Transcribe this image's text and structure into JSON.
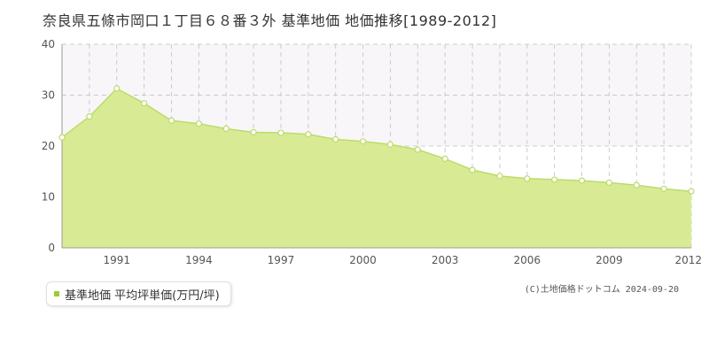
{
  "chart_data": {
    "type": "area",
    "title": "奈良県五條市岡口１丁目６８番３外 基準地価 地価推移[1989-2012]",
    "x": [
      1989,
      1990,
      1991,
      1992,
      1993,
      1994,
      1995,
      1996,
      1997,
      1998,
      1999,
      2000,
      2001,
      2002,
      2003,
      2004,
      2005,
      2006,
      2007,
      2008,
      2009,
      2010,
      2011,
      2012
    ],
    "series": [
      {
        "name": "基準地価 平均坪単価(万円/坪)",
        "values": [
          21.7,
          25.8,
          31.3,
          28.4,
          25.0,
          24.4,
          23.4,
          22.7,
          22.6,
          22.3,
          21.3,
          20.9,
          20.3,
          19.3,
          17.5,
          15.3,
          14.1,
          13.6,
          13.4,
          13.2,
          12.8,
          12.3,
          11.6,
          11.1
        ]
      }
    ],
    "x_tick_labels": [
      "1991",
      "1994",
      "1997",
      "2000",
      "2003",
      "2006",
      "2009",
      "2012"
    ],
    "y_tick_labels": [
      "0",
      "10",
      "20",
      "30",
      "40"
    ],
    "xlim": [
      1989,
      2012
    ],
    "ylim": [
      0,
      40
    ],
    "xlabel": "",
    "ylabel": "",
    "grid": true,
    "legend_position": "bottom-left"
  },
  "colors": {
    "fill": "#d8eb94",
    "line": "#bcdb6b",
    "marker_fill": "#ffffff",
    "legend_swatch": "#9acd32",
    "grid": "#cccccc",
    "band": "#f8f6f9"
  },
  "legend": {
    "label": "基準地価 平均坪単価(万円/坪)"
  },
  "credit": "(C)土地価格ドットコム 2024-09-20"
}
